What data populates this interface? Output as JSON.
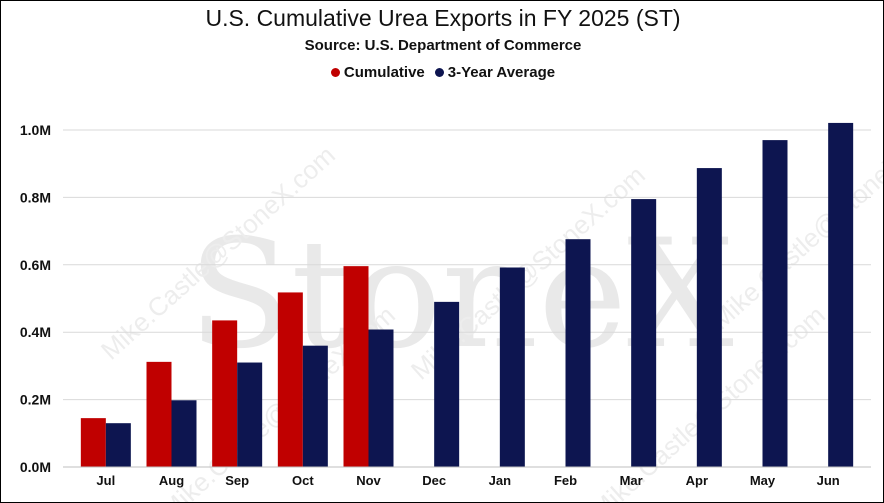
{
  "chart_data": {
    "type": "bar",
    "title": "U.S. Cumulative Urea Exports in FY 2025 (ST)",
    "subtitle": "Source: U.S. Department of Commerce",
    "xlabel": "",
    "ylabel": "",
    "categories": [
      "Jul",
      "Aug",
      "Sep",
      "Oct",
      "Nov",
      "Dec",
      "Jan",
      "Feb",
      "Mar",
      "Apr",
      "May",
      "Jun"
    ],
    "series": [
      {
        "name": "Cumulative",
        "color": "#c00000",
        "values": [
          0.145,
          0.312,
          0.435,
          0.518,
          0.596,
          null,
          null,
          null,
          null,
          null,
          null,
          null
        ]
      },
      {
        "name": "3-Year Average",
        "color": "#0d1550",
        "values": [
          0.13,
          0.198,
          0.31,
          0.36,
          0.408,
          0.49,
          0.592,
          0.676,
          0.795,
          0.887,
          0.97,
          1.021
        ]
      }
    ],
    "ylim": [
      0,
      1.02
    ],
    "yticks": [
      0,
      0.2,
      0.4,
      0.6,
      0.8,
      1.0
    ],
    "ytick_labels": [
      "0.0M",
      "0.2M",
      "0.4M",
      "0.6M",
      "0.8M",
      "1.0M"
    ],
    "grid": true,
    "legend_position": "top-center"
  },
  "watermark": {
    "logo": "StoneX",
    "email": "Mike.Castle@StoneX.com"
  }
}
